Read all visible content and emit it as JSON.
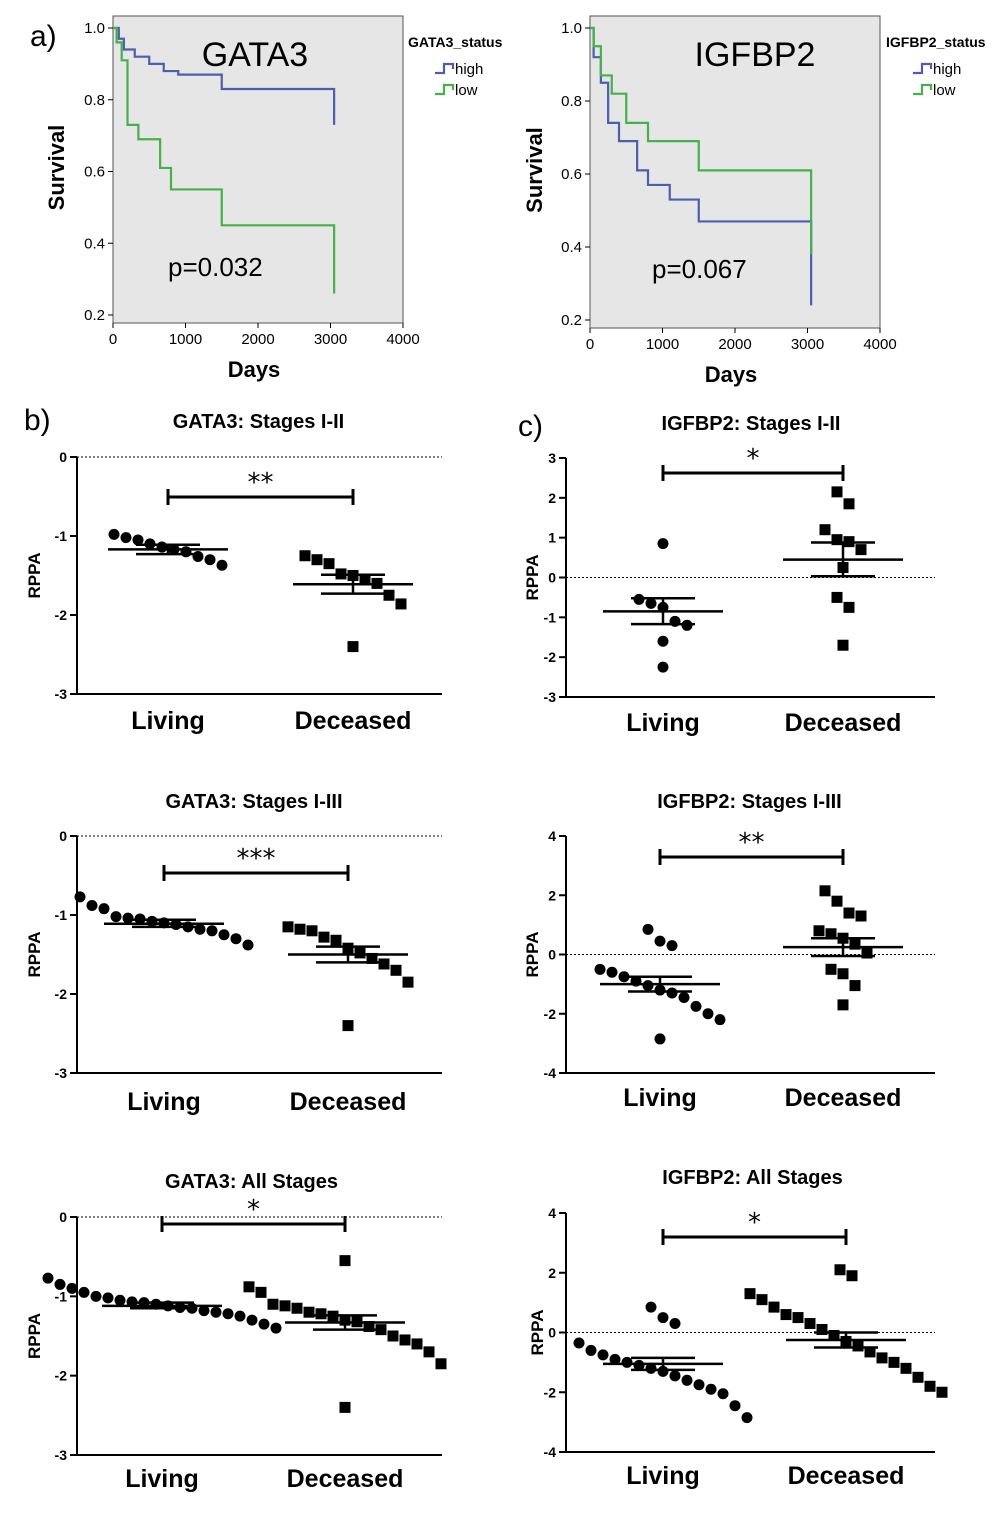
{
  "panel_labels": {
    "a": "a)",
    "b": "b)",
    "c": "c)"
  },
  "chart_data": [
    {
      "type": "line",
      "subtype": "kaplan-meier",
      "title": "GATA3",
      "legend_title": "GATA3_status",
      "legend_placement": "top-right-outside",
      "xlabel": "Days",
      "ylabel": "Survival",
      "xlim": [
        0,
        4000
      ],
      "ylim": [
        0.2,
        1.0
      ],
      "x_ticks": [
        0,
        1000,
        2000,
        3000,
        4000
      ],
      "y_ticks": [
        "1.0",
        "0.8",
        "0.6",
        "0.4",
        "0.2"
      ],
      "annotation": "p=0.032",
      "series": [
        {
          "name": "high",
          "color": "#4a5fae",
          "x": [
            0,
            80,
            150,
            300,
            500,
            700,
            900,
            1500,
            3000,
            3050
          ],
          "y": [
            1.0,
            0.97,
            0.94,
            0.92,
            0.9,
            0.88,
            0.87,
            0.83,
            0.83,
            0.73
          ]
        },
        {
          "name": "low",
          "color": "#46b04a",
          "x": [
            0,
            50,
            120,
            200,
            350,
            650,
            800,
            1500,
            3000,
            3050
          ],
          "y": [
            1.0,
            0.96,
            0.91,
            0.73,
            0.69,
            0.61,
            0.55,
            0.45,
            0.45,
            0.26
          ]
        }
      ]
    },
    {
      "type": "line",
      "subtype": "kaplan-meier",
      "title": "IGFBP2",
      "legend_title": "IGFBP2_status",
      "legend_placement": "top-right-outside",
      "xlabel": "Days",
      "ylabel": "Survival",
      "xlim": [
        0,
        4000
      ],
      "ylim": [
        0.2,
        1.0
      ],
      "x_ticks": [
        0,
        1000,
        2000,
        3000,
        4000
      ],
      "y_ticks": [
        "1.0",
        "0.8",
        "0.6",
        "0.4",
        "0.2"
      ],
      "annotation": "p=0.067",
      "series": [
        {
          "name": "high",
          "color": "#4a5fae",
          "x": [
            0,
            50,
            150,
            250,
            400,
            650,
            800,
            1100,
            1500,
            3000,
            3050
          ],
          "y": [
            1.0,
            0.92,
            0.85,
            0.74,
            0.69,
            0.61,
            0.57,
            0.53,
            0.47,
            0.47,
            0.24
          ]
        },
        {
          "name": "low",
          "color": "#46b04a",
          "x": [
            0,
            50,
            150,
            300,
            500,
            800,
            1500,
            3000,
            3050
          ],
          "y": [
            1.0,
            0.95,
            0.87,
            0.82,
            0.74,
            0.69,
            0.61,
            0.61,
            0.38
          ]
        }
      ]
    },
    {
      "type": "scatter",
      "subtype": "dot-plot",
      "title": "GATA3: Stages I-II",
      "ylabel": "RPPA",
      "categories": [
        "Living",
        "Deceased"
      ],
      "ylim": [
        -3,
        0
      ],
      "y_ticks": [
        0,
        -1,
        -2,
        -3
      ],
      "reference_line": 0,
      "significance": "**",
      "series": [
        {
          "name": "Living",
          "marker": "circle",
          "mean": -1.17,
          "sem_low": -1.23,
          "sem_high": -1.11,
          "values": [
            -0.98,
            -1.02,
            -1.05,
            -1.1,
            -1.14,
            -1.17,
            -1.2,
            -1.26,
            -1.3,
            -1.37
          ]
        },
        {
          "name": "Deceased",
          "marker": "square",
          "mean": -1.61,
          "sem_low": -1.73,
          "sem_high": -1.49,
          "values": [
            -1.25,
            -1.3,
            -1.35,
            -1.48,
            -1.5,
            -1.55,
            -1.6,
            -1.75,
            -1.86,
            -2.4
          ]
        }
      ]
    },
    {
      "type": "scatter",
      "subtype": "dot-plot",
      "title": "IGFBP2: Stages I-II",
      "ylabel": "RPPA",
      "categories": [
        "Living",
        "Deceased"
      ],
      "ylim": [
        -3,
        3
      ],
      "y_ticks": [
        3,
        2,
        1,
        0,
        -1,
        -2,
        -3
      ],
      "reference_line": 0,
      "significance": "*",
      "series": [
        {
          "name": "Living",
          "marker": "circle",
          "mean": -0.85,
          "sem_low": -1.17,
          "sem_high": -0.52,
          "values": [
            0.85,
            -0.55,
            -0.65,
            -0.75,
            -1.1,
            -1.2,
            -1.6,
            -2.25
          ]
        },
        {
          "name": "Deceased",
          "marker": "square",
          "mean": 0.45,
          "sem_low": 0.03,
          "sem_high": 0.88,
          "values": [
            2.15,
            1.85,
            1.2,
            0.95,
            0.9,
            0.7,
            0.25,
            -0.5,
            -0.75,
            -1.7
          ]
        }
      ]
    },
    {
      "type": "scatter",
      "subtype": "dot-plot",
      "title": "GATA3: Stages I-III",
      "ylabel": "RPPA",
      "categories": [
        "Living",
        "Deceased"
      ],
      "ylim": [
        -3,
        0
      ],
      "y_ticks": [
        0,
        -1,
        -2,
        -3
      ],
      "reference_line": 0,
      "significance": "***",
      "series": [
        {
          "name": "Living",
          "marker": "circle",
          "mean": -1.11,
          "sem_low": -1.15,
          "sem_high": -1.06,
          "values": [
            -0.77,
            -0.88,
            -0.92,
            -1.02,
            -1.04,
            -1.05,
            -1.08,
            -1.1,
            -1.12,
            -1.15,
            -1.18,
            -1.2,
            -1.25,
            -1.3,
            -1.38
          ]
        },
        {
          "name": "Deceased",
          "marker": "square",
          "mean": -1.5,
          "sem_low": -1.6,
          "sem_high": -1.4,
          "values": [
            -1.15,
            -1.18,
            -1.2,
            -1.28,
            -1.32,
            -1.42,
            -1.48,
            -1.55,
            -1.62,
            -1.7,
            -1.85,
            -2.4
          ]
        }
      ]
    },
    {
      "type": "scatter",
      "subtype": "dot-plot",
      "title": "IGFBP2: Stages I-III",
      "ylabel": "RPPA",
      "categories": [
        "Living",
        "Deceased"
      ],
      "ylim": [
        -4,
        4
      ],
      "y_ticks": [
        4,
        2,
        0,
        -2,
        -4
      ],
      "reference_line": 0,
      "significance": "**",
      "series": [
        {
          "name": "Living",
          "marker": "circle",
          "mean": -1.0,
          "sem_low": -1.25,
          "sem_high": -0.75,
          "values": [
            0.85,
            0.45,
            0.3,
            -0.5,
            -0.6,
            -0.75,
            -0.9,
            -1.05,
            -1.2,
            -1.3,
            -1.45,
            -1.75,
            -2.0,
            -2.2,
            -2.85
          ]
        },
        {
          "name": "Deceased",
          "marker": "square",
          "mean": 0.25,
          "sem_low": -0.05,
          "sem_high": 0.55,
          "values": [
            2.15,
            1.8,
            1.4,
            1.3,
            0.8,
            0.7,
            0.55,
            0.35,
            0.05,
            -0.5,
            -0.65,
            -1.05,
            -1.7
          ]
        }
      ]
    },
    {
      "type": "scatter",
      "subtype": "dot-plot",
      "title": "GATA3: All Stages",
      "ylabel": "RPPA",
      "categories": [
        "Living",
        "Deceased"
      ],
      "ylim": [
        -3,
        0
      ],
      "y_ticks": [
        0,
        -1,
        -2,
        -3
      ],
      "reference_line": 0,
      "significance": "*",
      "series": [
        {
          "name": "Living",
          "marker": "circle",
          "mean": -1.12,
          "sem_low": -1.15,
          "sem_high": -1.08,
          "values": [
            -0.77,
            -0.85,
            -0.9,
            -0.95,
            -1.0,
            -1.02,
            -1.05,
            -1.07,
            -1.08,
            -1.1,
            -1.12,
            -1.14,
            -1.15,
            -1.18,
            -1.2,
            -1.22,
            -1.25,
            -1.3,
            -1.35,
            -1.4
          ]
        },
        {
          "name": "Deceased",
          "marker": "square",
          "mean": -1.33,
          "sem_low": -1.42,
          "sem_high": -1.24,
          "values": [
            -0.55,
            -0.88,
            -0.95,
            -1.1,
            -1.12,
            -1.15,
            -1.2,
            -1.22,
            -1.25,
            -1.3,
            -1.32,
            -1.38,
            -1.42,
            -1.5,
            -1.55,
            -1.6,
            -1.7,
            -1.85,
            -2.4
          ]
        }
      ]
    },
    {
      "type": "scatter",
      "subtype": "dot-plot",
      "title": "IGFBP2: All Stages",
      "ylabel": "RPPA",
      "categories": [
        "Living",
        "Deceased"
      ],
      "ylim": [
        -4,
        4
      ],
      "y_ticks": [
        4,
        2,
        0,
        -2,
        -4
      ],
      "reference_line": 0,
      "significance": "*",
      "series": [
        {
          "name": "Living",
          "marker": "circle",
          "mean": -1.05,
          "sem_low": -1.25,
          "sem_high": -0.85,
          "values": [
            0.85,
            0.5,
            0.3,
            -0.35,
            -0.6,
            -0.75,
            -0.9,
            -1.0,
            -1.1,
            -1.2,
            -1.3,
            -1.45,
            -1.6,
            -1.75,
            -1.9,
            -2.05,
            -2.45,
            -2.85
          ]
        },
        {
          "name": "Deceased",
          "marker": "square",
          "mean": -0.25,
          "sem_low": -0.5,
          "sem_high": 0.0,
          "values": [
            2.1,
            1.9,
            1.3,
            1.1,
            0.85,
            0.6,
            0.5,
            0.3,
            0.1,
            -0.1,
            -0.3,
            -0.45,
            -0.65,
            -0.85,
            -1.0,
            -1.2,
            -1.5,
            -1.8,
            -2.0
          ]
        }
      ]
    }
  ]
}
